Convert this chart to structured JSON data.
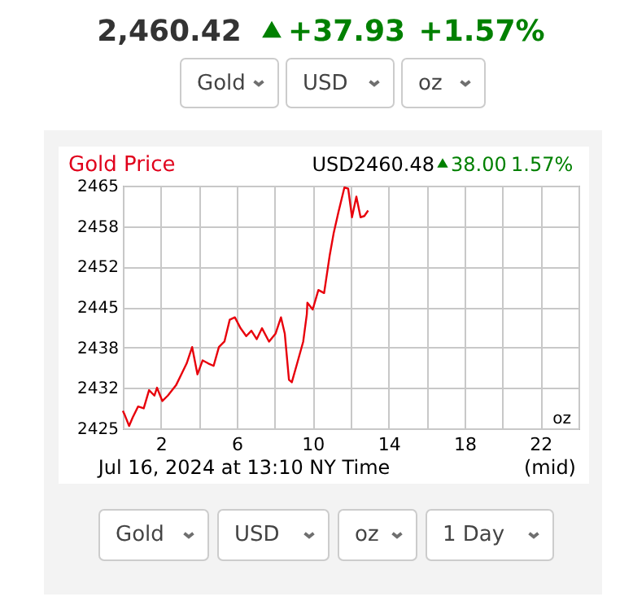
{
  "chart_data": {
    "type": "line",
    "title": "Gold Price",
    "annotations": [
      "2,460.42",
      "+37.93",
      "+1.57%",
      "Gold",
      "USD",
      "oz",
      "USD2460.48",
      "38.00",
      "1.57%",
      "oz",
      "Jul 16, 2024 at 13:10 NY Time",
      "(mid)",
      "Gold",
      "USD",
      "oz",
      "1 Day"
    ],
    "x": [
      0,
      0.1,
      0.33,
      0.52,
      0.8,
      1.1,
      1.38,
      1.66,
      1.8,
      2.08,
      2.37,
      2.8,
      3.08,
      3.36,
      3.65,
      3.93,
      4.2,
      4.5,
      4.78,
      5.06,
      5.35,
      5.63,
      5.9,
      6.2,
      6.5,
      6.77,
      7.05,
      7.33,
      7.7,
      8.04,
      8.33,
      8.53,
      8.75,
      8.9,
      9.18,
      9.5,
      9.69,
      9.72,
      10.0,
      10.3,
      10.6,
      10.9,
      11.1,
      11.36,
      11.67,
      11.87,
      12.07,
      12.3,
      12.52,
      12.72,
      12.92
    ],
    "series": [
      {
        "color": "#e8000b",
        "values": [
          2427.9,
          2427.2,
          2425.4,
          2426.8,
          2428.6,
          2428.3,
          2431.3,
          2430.4,
          2431.7,
          2429.5,
          2430.4,
          2432.1,
          2433.9,
          2435.7,
          2438.4,
          2433.9,
          2436.2,
          2435.7,
          2435.3,
          2438.4,
          2439.3,
          2442.9,
          2443.3,
          2441.5,
          2440.2,
          2441.1,
          2439.7,
          2441.5,
          2439.3,
          2440.6,
          2443.3,
          2440.6,
          2433.0,
          2432.6,
          2435.7,
          2439.3,
          2443.8,
          2445.7,
          2444.6,
          2447.8,
          2447.3,
          2453.6,
          2457.1,
          2460.7,
          2464.7,
          2464.5,
          2459.8,
          2463.2,
          2459.8,
          2460.0,
          2460.9
        ]
      }
    ],
    "xlim": [
      0,
      24
    ],
    "xticks": [
      {
        "value": 0,
        "label": null
      },
      2,
      {
        "value": 4,
        "label": null
      },
      6,
      {
        "value": 8,
        "label": null
      },
      10,
      {
        "value": 12,
        "label": null
      },
      14,
      {
        "value": 16,
        "label": null
      },
      18,
      {
        "value": 20,
        "label": null
      },
      22,
      {
        "value": 24,
        "label": null
      }
    ],
    "ylim": [
      2425,
      2465
    ],
    "yticks": [
      2425,
      {
        "value": 2431.6667,
        "label": "2432"
      },
      {
        "value": 2438.3333,
        "label": "2438"
      },
      2445,
      {
        "value": 2451.6667,
        "label": "2452"
      },
      {
        "value": 2458.3333,
        "label": "2458"
      },
      2465
    ],
    "grid": true,
    "line_style": "solid"
  }
}
